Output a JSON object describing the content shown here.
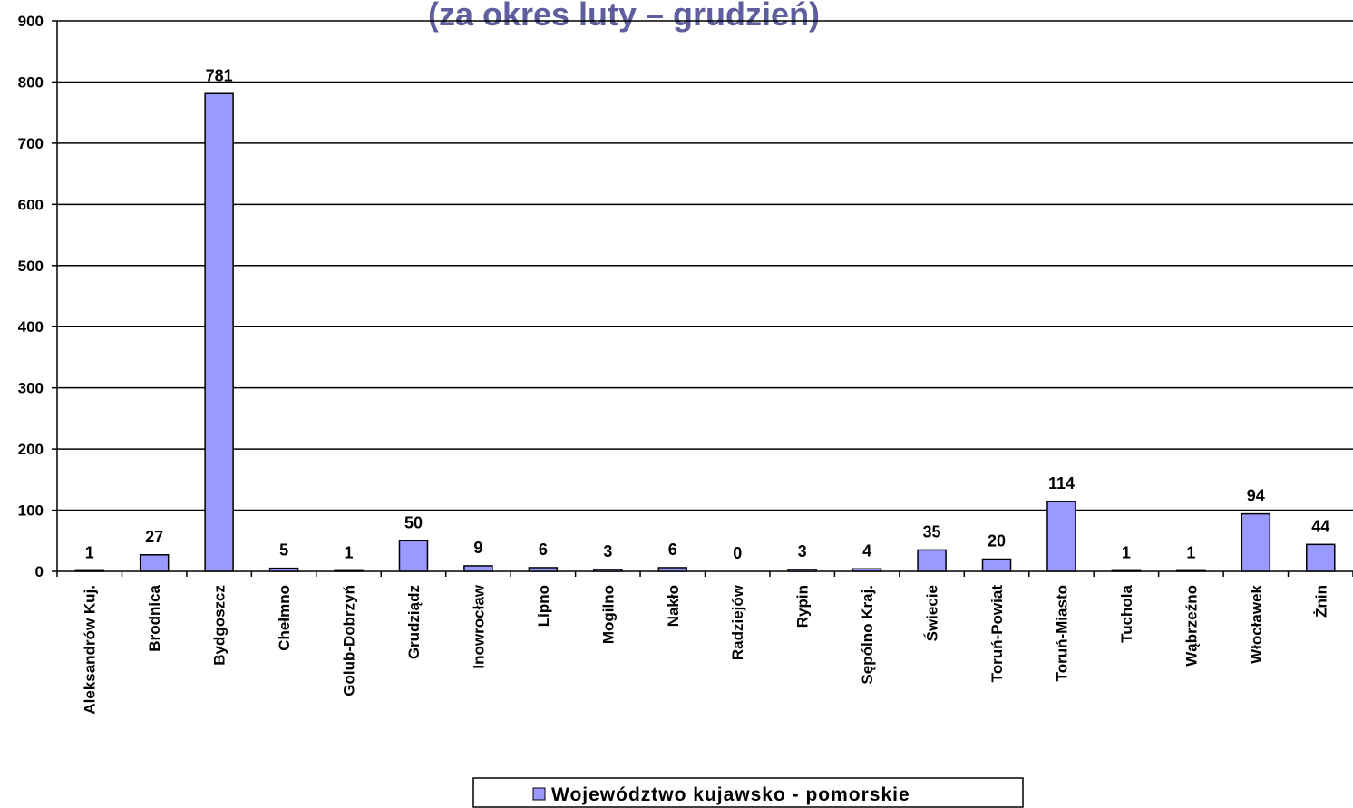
{
  "chart_data": {
    "type": "bar",
    "title": "(za okres luty – grudzień)",
    "categories": [
      "Aleksandrów Kuj.",
      "Brodnica",
      "Bydgoszcz",
      "Chełmno",
      "Golub-Dobrzyń",
      "Grudziądz",
      "Inowrocław",
      "Lipno",
      "Mogilno",
      "Nakło",
      "Radziejów",
      "Rypin",
      "Sępólno Kraj.",
      "Świecie",
      "Toruń-Powiat",
      "Toruń-Miasto",
      "Tuchola",
      "Wąbrzeźno",
      "Włocławek",
      "Żnin"
    ],
    "series": [
      {
        "name": "Województwo kujawsko - pomorskie",
        "color": "#9999ff",
        "values": [
          1,
          27,
          781,
          5,
          1,
          50,
          9,
          6,
          3,
          6,
          0,
          3,
          4,
          35,
          20,
          114,
          1,
          1,
          94,
          44
        ]
      }
    ],
    "ylim": [
      0,
      900
    ],
    "yticks": [
      0,
      100,
      200,
      300,
      400,
      500,
      600,
      700,
      800,
      900
    ],
    "grid": true
  }
}
